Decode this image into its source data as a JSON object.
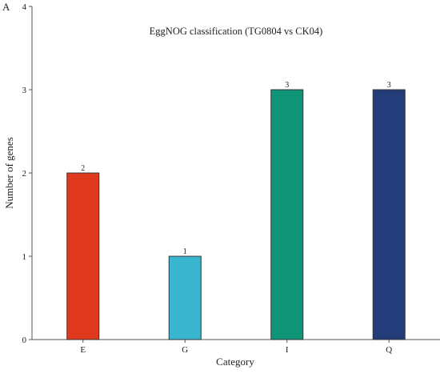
{
  "panel_letter": "A",
  "chart_data": {
    "type": "bar",
    "title": "EggNOG classification (TG0804 vs CK04)",
    "xlabel": "Category",
    "ylabel": "Number of genes",
    "categories": [
      "E",
      "G",
      "I",
      "Q"
    ],
    "values": [
      2,
      1,
      3,
      3
    ],
    "data_labels": [
      "2",
      "1",
      "3",
      "3"
    ],
    "colors": [
      "#e03a1e",
      "#3ab5d0",
      "#0f9478",
      "#233d7a"
    ],
    "ylim": [
      0,
      4
    ],
    "yticks": [
      0,
      1,
      2,
      3,
      4
    ],
    "grid": false,
    "legend": "none"
  }
}
